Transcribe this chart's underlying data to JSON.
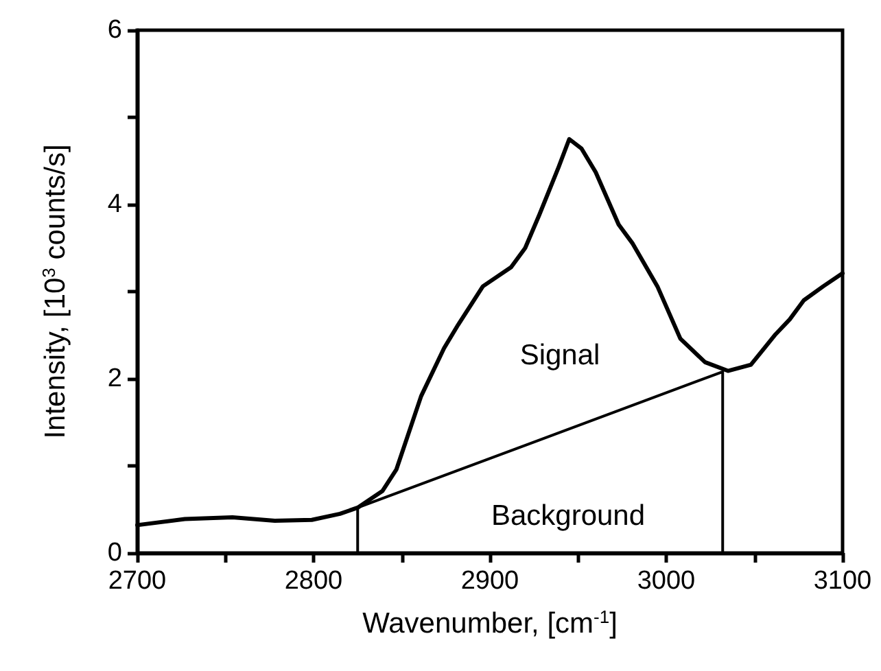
{
  "chart_data": {
    "type": "line",
    "xlabel": "Wavenumber, [cm$^{-1}$]",
    "ylabel": "Intensity, [10$^{3}$ counts/s]",
    "xlim": [
      2700,
      3100
    ],
    "ylim": [
      0,
      6
    ],
    "xticks": [
      2700,
      {
        "value": 2750,
        "label": null
      },
      2800,
      {
        "value": 2850,
        "label": null
      },
      2900,
      {
        "value": 2950,
        "label": null
      },
      3000,
      {
        "value": 3050,
        "label": null
      },
      3100
    ],
    "yticks": [
      0,
      {
        "value": 1,
        "label": null
      },
      2,
      {
        "value": 3,
        "label": null
      },
      4,
      {
        "value": 5,
        "label": null
      },
      6
    ],
    "grid": false,
    "marker": "none",
    "line_style": "solid",
    "series": [
      {
        "color": "#000000",
        "x": [
          2700,
          2727,
          2754,
          2778,
          2799,
          2815,
          2825,
          2839,
          2847,
          2861,
          2874,
          2882,
          2896,
          2912,
          2920,
          2928,
          2939,
          2945,
          2952,
          2960,
          2973,
          2981,
          2995,
          3008,
          3022,
          3035,
          3048,
          3062,
          3070,
          3078,
          3089,
          3100
        ],
        "values": [
          0.32,
          0.39,
          0.41,
          0.37,
          0.38,
          0.45,
          0.52,
          0.71,
          0.96,
          1.8,
          2.35,
          2.62,
          3.06,
          3.28,
          3.5,
          3.88,
          4.43,
          4.75,
          4.64,
          4.37,
          3.77,
          3.55,
          3.06,
          2.46,
          2.19,
          2.09,
          2.16,
          2.51,
          2.68,
          2.9,
          3.06,
          3.21
        ]
      },
      {
        "color": "#000000",
        "x": [
          2825,
          2825,
          3032,
          3032
        ],
        "values": [
          0,
          0.52,
          2.08,
          0
        ]
      }
    ],
    "annotations": [
      "Signal",
      "Background"
    ]
  }
}
